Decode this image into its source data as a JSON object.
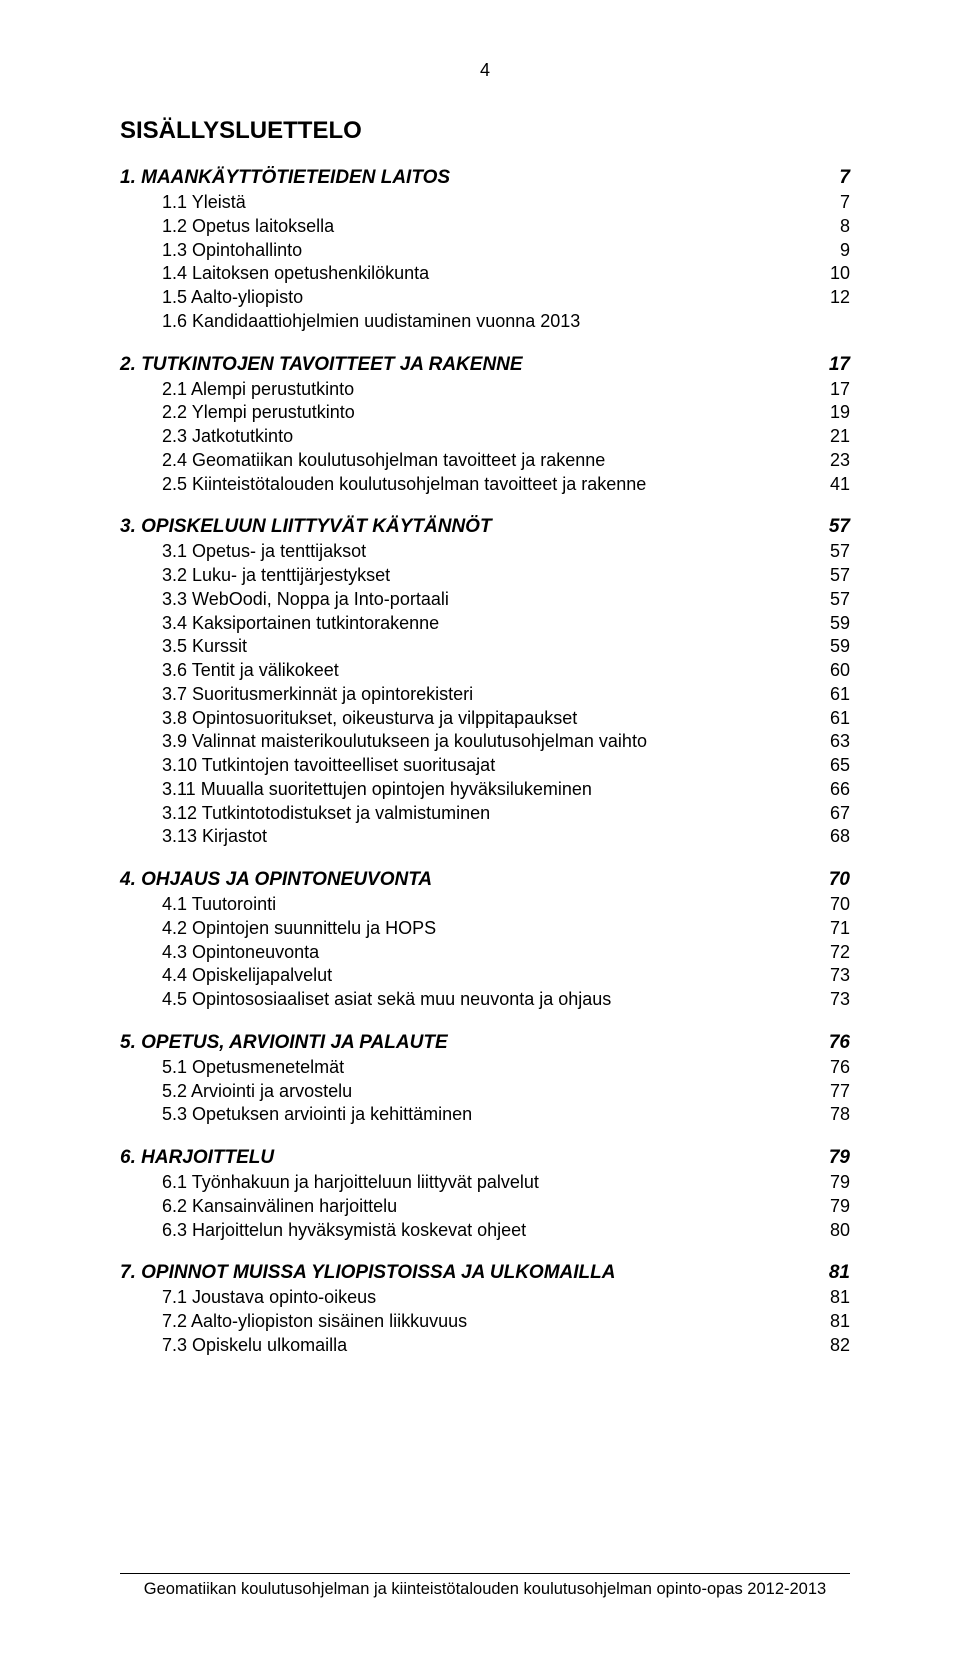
{
  "page_number": "4",
  "title": "SISÄLLYSLUETTELO",
  "footer": "Geomatiikan koulutusohjelman ja kiinteistötalouden koulutusohjelman opinto-opas 2012-2013",
  "sections": [
    {
      "head": "1. MAANKÄYTTÖTIETEIDEN LAITOS",
      "page": "7",
      "items": [
        {
          "label": "1.1   Yleistä",
          "page": "7"
        },
        {
          "label": "1.2   Opetus laitoksella",
          "page": "8"
        },
        {
          "label": "1.3   Opintohallinto",
          "page": "9"
        },
        {
          "label": "1.4   Laitoksen opetushenkilökunta",
          "page": "10"
        },
        {
          "label": "1.5   Aalto-yliopisto",
          "page": "12"
        },
        {
          "label": "1.6   Kandidaattiohjelmien uudistaminen vuonna 2013",
          "page": ""
        }
      ]
    },
    {
      "head": "2. TUTKINTOJEN TAVOITTEET JA RAKENNE",
      "page": "17",
      "items": [
        {
          "label": "2.1   Alempi perustutkinto",
          "page": "17"
        },
        {
          "label": "2.2   Ylempi perustutkinto",
          "page": "19"
        },
        {
          "label": "2.3   Jatkotutkinto",
          "page": "21"
        },
        {
          "label": "2.4   Geomatiikan koulutusohjelman tavoitteet ja rakenne",
          "page": "23"
        },
        {
          "label": "2.5   Kiinteistötalouden koulutusohjelman tavoitteet ja rakenne",
          "page": "41"
        }
      ]
    },
    {
      "head": "3. OPISKELUUN LIITTYVÄT KÄYTÄNNÖT",
      "page": "57",
      "items": [
        {
          "label": "3.1   Opetus- ja tenttijaksot",
          "page": "57"
        },
        {
          "label": "3.2   Luku- ja tenttijärjestykset",
          "page": "57"
        },
        {
          "label": "3.3   WebOodi, Noppa ja Into-portaali",
          "page": "57"
        },
        {
          "label": "3.4   Kaksiportainen tutkintorakenne",
          "page": "59"
        },
        {
          "label": "3.5   Kurssit",
          "page": "59"
        },
        {
          "label": "3.6   Tentit ja välikokeet",
          "page": "60"
        },
        {
          "label": "3.7   Suoritusmerkinnät ja opintorekisteri",
          "page": "61"
        },
        {
          "label": "3.8   Opintosuoritukset, oikeusturva ja vilppitapaukset",
          "page": "61"
        },
        {
          "label": "3.9   Valinnat maisterikoulutukseen ja koulutusohjelman vaihto",
          "page": "63"
        },
        {
          "label": "3.10 Tutkintojen tavoitteelliset suoritusajat",
          "page": "65"
        },
        {
          "label": "3.11 Muualla suoritettujen opintojen hyväksilukeminen",
          "page": "66"
        },
        {
          "label": "3.12 Tutkintotodistukset ja valmistuminen",
          "page": "67"
        },
        {
          "label": "3.13 Kirjastot",
          "page": "68"
        }
      ]
    },
    {
      "head": "4. OHJAUS JA OPINTONEUVONTA",
      "page": "70",
      "items": [
        {
          "label": "4.1   Tuutorointi",
          "page": "70"
        },
        {
          "label": "4.2   Opintojen suunnittelu ja HOPS",
          "page": "71"
        },
        {
          "label": "4.3   Opintoneuvonta",
          "page": "72"
        },
        {
          "label": "4.4   Opiskelijapalvelut",
          "page": "73"
        },
        {
          "label": "4.5   Opintososiaaliset asiat sekä muu neuvonta ja ohjaus",
          "page": "73"
        }
      ]
    },
    {
      "head": "5. OPETUS, ARVIOINTI JA PALAUTE",
      "page": "76",
      "items": [
        {
          "label": "5.1   Opetusmenetelmät",
          "page": "76"
        },
        {
          "label": "5.2   Arviointi ja arvostelu",
          "page": "77"
        },
        {
          "label": "5.3   Opetuksen arviointi ja kehittäminen",
          "page": "78"
        }
      ]
    },
    {
      "head": "6. HARJOITTELU",
      "page": "79",
      "items": [
        {
          "label": "6.1   Työnhakuun ja harjoitteluun liittyvät palvelut",
          "page": "79"
        },
        {
          "label": "6.2   Kansainvälinen harjoittelu",
          "page": "79"
        },
        {
          "label": "6.3   Harjoittelun hyväksymistä koskevat ohjeet",
          "page": "80"
        }
      ]
    },
    {
      "head": "7. OPINNOT MUISSA YLIOPISTOISSA JA ULKOMAILLA",
      "page": "81",
      "items": [
        {
          "label": "7.1   Joustava opinto-oikeus",
          "page": "81"
        },
        {
          "label": "7.2    Aalto-yliopiston sisäinen liikkuvuus",
          "page": "81"
        },
        {
          "label": "7.3   Opiskelu ulkomailla",
          "page": "82"
        }
      ]
    }
  ]
}
